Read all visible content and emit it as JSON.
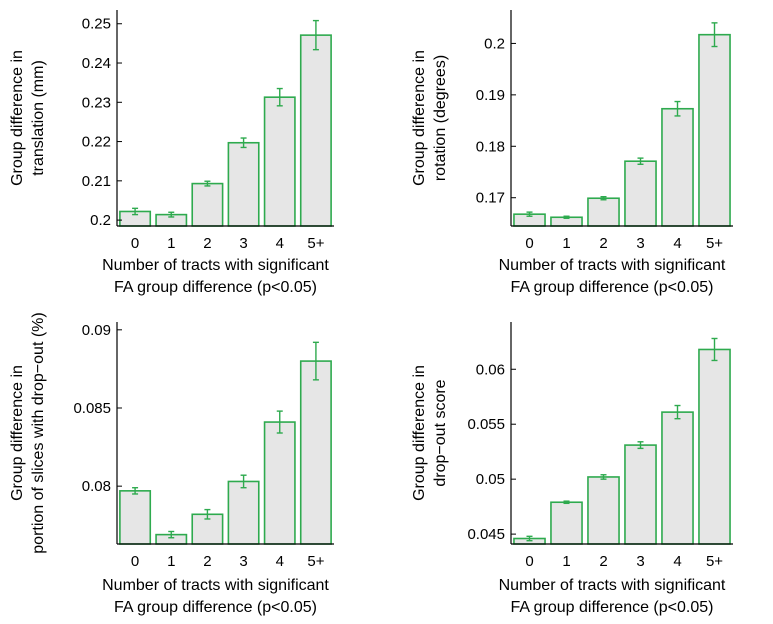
{
  "chart_data": [
    {
      "type": "bar",
      "categories": [
        "0",
        "1",
        "2",
        "3",
        "4",
        "5+"
      ],
      "values": [
        0.2022,
        0.2014,
        0.2093,
        0.2197,
        0.2313,
        0.2471
      ],
      "errors": [
        0.0008,
        0.0006,
        0.0006,
        0.0012,
        0.0022,
        0.0037
      ],
      "ylim": [
        0.1985,
        0.2535
      ],
      "yticks": [
        0.2,
        0.21,
        0.22,
        0.23,
        0.24,
        0.25
      ],
      "ytick_labels": [
        "0.2",
        "0.21",
        "0.22",
        "0.23",
        "0.24",
        "0.25"
      ],
      "ylabel": [
        "Group difference in",
        "translation (mm)"
      ],
      "xlabel": [
        "Number of tracts with significant",
        "FA group difference (p<0.05)"
      ],
      "bar_color": "#e6e6e6",
      "edge_color": "#2eaa4e"
    },
    {
      "type": "bar",
      "categories": [
        "0",
        "1",
        "2",
        "3",
        "4",
        "5+"
      ],
      "values": [
        0.1668,
        0.1662,
        0.1699,
        0.1771,
        0.1873,
        0.2017
      ],
      "errors": [
        0.0004,
        0.0002,
        0.0003,
        0.0006,
        0.0014,
        0.0023
      ],
      "ylim": [
        0.1645,
        0.2065
      ],
      "yticks": [
        0.17,
        0.18,
        0.19,
        0.2
      ],
      "ytick_labels": [
        "0.17",
        "0.18",
        "0.19",
        "0.2"
      ],
      "ylabel": [
        "Group difference in",
        "rotation (degrees)"
      ],
      "xlabel": [
        "Number of tracts with significant",
        "FA group difference (p<0.05)"
      ],
      "bar_color": "#e6e6e6",
      "edge_color": "#2eaa4e"
    },
    {
      "type": "bar",
      "categories": [
        "0",
        "1",
        "2",
        "3",
        "4",
        "5+"
      ],
      "values": [
        0.0797,
        0.0769,
        0.0782,
        0.0803,
        0.0841,
        0.088
      ],
      "errors": [
        0.0002,
        0.0002,
        0.0003,
        0.0004,
        0.0007,
        0.0012
      ],
      "ylim": [
        0.0763,
        0.0905
      ],
      "yticks": [
        0.08,
        0.085,
        0.09
      ],
      "ytick_labels": [
        "0.08",
        "0.085",
        "0.09"
      ],
      "ylabel": [
        "Group difference in",
        "portion of slices with drop−out (%)"
      ],
      "xlabel": [
        "Number of tracts with significant",
        "FA group difference (p<0.05)"
      ],
      "bar_color": "#e6e6e6",
      "edge_color": "#2eaa4e"
    },
    {
      "type": "bar",
      "categories": [
        "0",
        "1",
        "2",
        "3",
        "4",
        "5+"
      ],
      "values": [
        0.0446,
        0.0479,
        0.0502,
        0.0531,
        0.0561,
        0.0618
      ],
      "errors": [
        0.0002,
        0.0001,
        0.0002,
        0.0003,
        0.0006,
        0.001
      ],
      "ylim": [
        0.0441,
        0.0643
      ],
      "yticks": [
        0.045,
        0.05,
        0.055,
        0.06
      ],
      "ytick_labels": [
        "0.045",
        "0.05",
        "0.055",
        "0.06"
      ],
      "ylabel": [
        "Group difference in",
        "drop−out score"
      ],
      "xlabel": [
        "Number of tracts with significant",
        "FA group difference (p<0.05)"
      ],
      "bar_color": "#e6e6e6",
      "edge_color": "#2eaa4e"
    }
  ]
}
